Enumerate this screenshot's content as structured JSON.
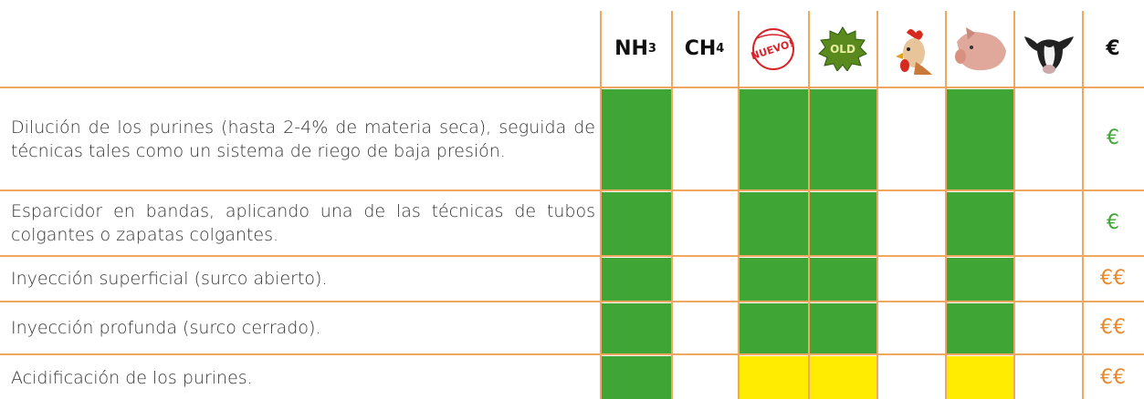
{
  "table": {
    "columns": [
      {
        "label": "NH",
        "sub": "3"
      },
      {
        "label": "CH",
        "sub": "4"
      },
      {
        "label": "NUEVO!"
      },
      {
        "label": "OLD"
      },
      {},
      {},
      {},
      {
        "label": "€"
      }
    ],
    "rows": [
      {
        "text": "Dilución de los purines (hasta 2-4% de materia seca), seguida de técnicas tales como un sistema de riego de baja presión.",
        "cells": [
          "#3fa535",
          null,
          "#3fa535",
          "#3fa535",
          null,
          "#3fa535",
          null
        ],
        "cost": "€",
        "cost_color": "#3fa535"
      },
      {
        "text": "Esparcidor en bandas, aplicando una de las técnicas de tubos colgantes o zapatas colgantes.",
        "cells": [
          "#3fa535",
          null,
          "#3fa535",
          "#3fa535",
          null,
          "#3fa535",
          null
        ],
        "cost": "€",
        "cost_color": "#3fa535"
      },
      {
        "text": "Inyección superficial (surco abierto).",
        "cells": [
          "#3fa535",
          null,
          "#3fa535",
          "#3fa535",
          null,
          "#3fa535",
          null
        ],
        "cost": "€€",
        "cost_color": "#e8892b"
      },
      {
        "text": "Inyección profunda (surco cerrado).",
        "cells": [
          "#3fa535",
          null,
          "#3fa535",
          "#3fa535",
          null,
          "#3fa535",
          null
        ],
        "cost": "€€",
        "cost_color": "#e8892b"
      },
      {
        "text": "Acidificación de los purines.",
        "cells": [
          "#3fa535",
          null,
          "#ffec00",
          "#ffec00",
          null,
          "#ffec00",
          null
        ],
        "cost": "€€",
        "cost_color": "#e8892b"
      }
    ]
  }
}
